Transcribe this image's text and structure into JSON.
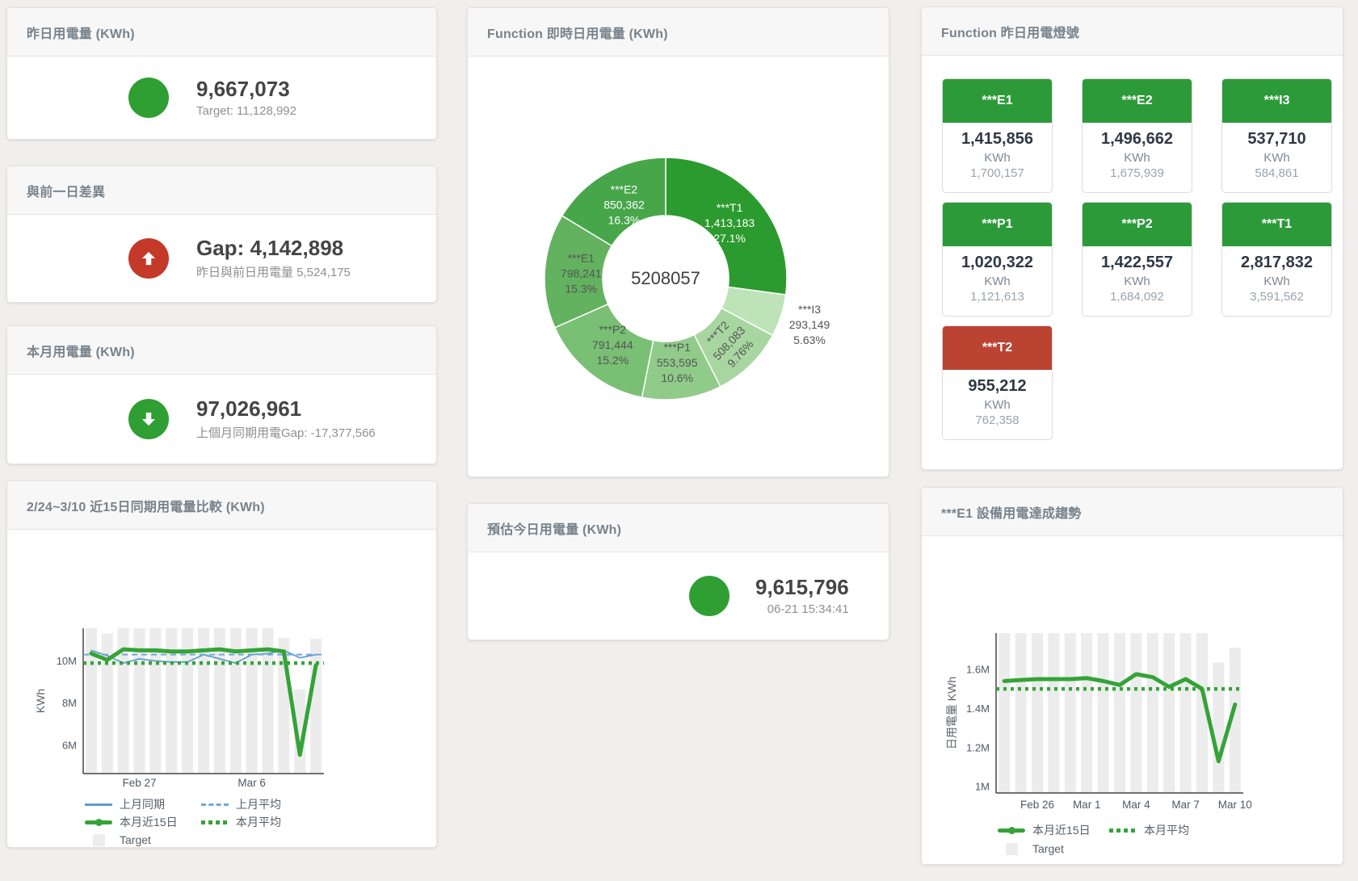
{
  "colors": {
    "green": "#2f9e33",
    "red": "#c43928",
    "tile_green": "#2d9a3a",
    "tile_red": "#bb4332",
    "line_green": "#35a338",
    "line_blue": "#5e9dd1",
    "dash_blue": "#6fa9da",
    "bar_gray": "#ececec"
  },
  "cards": {
    "yesterday": {
      "title": "昨日用電量 (KWh)",
      "value": "9,667,073",
      "sub": "Target: 11,128,992"
    },
    "gap": {
      "title": "與前一日差異",
      "value": "Gap: 4,142,898",
      "sub": "昨日與前日用電量 5,524,175"
    },
    "month": {
      "title": "本月用電量 (KWh)",
      "value": "97,026,961",
      "sub": "上個月同期用電Gap: -17,377,566"
    },
    "compare": {
      "title": "2/24~3/10 近15日同期用電量比較 (KWh)"
    },
    "donut": {
      "title": "Function 即時日用電量 (KWh)"
    },
    "today": {
      "title": "預估今日用電量 (KWh)",
      "value": "9,615,796",
      "sub": "06-21 15:34:41"
    },
    "lights": {
      "title": "Function 昨日用電燈號",
      "unit": "KWh",
      "tiles": [
        {
          "label": "***E1",
          "value": "1,415,856",
          "target": "1,700,157",
          "status": "green"
        },
        {
          "label": "***E2",
          "value": "1,496,662",
          "target": "1,675,939",
          "status": "green"
        },
        {
          "label": "***I3",
          "value": "537,710",
          "target": "584,861",
          "status": "green"
        },
        {
          "label": "***P1",
          "value": "1,020,322",
          "target": "1,121,613",
          "status": "green"
        },
        {
          "label": "***P2",
          "value": "1,422,557",
          "target": "1,684,092",
          "status": "green"
        },
        {
          "label": "***T1",
          "value": "2,817,832",
          "target": "3,591,562",
          "status": "green"
        },
        {
          "label": "***T2",
          "value": "955,212",
          "target": "762,358",
          "status": "red"
        }
      ]
    },
    "trend": {
      "title": "***E1 設備用電達成趨勢"
    }
  },
  "chart_data": [
    {
      "id": "realtime-donut",
      "type": "pie",
      "title": "Function 即時日用電量 (KWh)",
      "center_total": "5208057",
      "slices": [
        {
          "name": "***T1",
          "value": 1413183,
          "display": "1,413,183",
          "pct": "27.1%",
          "share": 27.1,
          "color": "#2c9b2f",
          "label_color": "#ffffff"
        },
        {
          "name": "***I3",
          "value": 293149,
          "display": "293,149",
          "pct": "5.63%",
          "share": 5.63,
          "color": "#bee3b8",
          "label_color": "#555555",
          "outside": true
        },
        {
          "name": "***T2",
          "value": 508083,
          "display": "508,083",
          "pct": "9.76%",
          "share": 9.76,
          "color": "#a7d6a0",
          "label_color": "#555555",
          "rotate": -47
        },
        {
          "name": "***P1",
          "value": 553595,
          "display": "553,595",
          "pct": "10.6%",
          "share": 10.6,
          "color": "#90cb89",
          "label_color": "#555555"
        },
        {
          "name": "***P2",
          "value": 791444,
          "display": "791,444",
          "pct": "15.2%",
          "share": 15.2,
          "color": "#79bf74",
          "label_color": "#555555"
        },
        {
          "name": "***E1",
          "value": 798241,
          "display": "798,241",
          "pct": "15.3%",
          "share": 15.3,
          "color": "#63b25f",
          "label_color": "#555555"
        },
        {
          "name": "***E2",
          "value": 850362,
          "display": "850,362",
          "pct": "16.3%",
          "share": 16.3,
          "color": "#48a64a",
          "label_color": "#ffffff"
        }
      ]
    },
    {
      "id": "compare",
      "type": "line",
      "title": "2/24~3/10 近15日同期用電量比較 (KWh)",
      "ylabel": "KWh",
      "ylim": [
        4660000,
        11550000
      ],
      "x": [
        "Feb 24",
        "Feb 25",
        "Feb 26",
        "Feb 27",
        "Feb 28",
        "Mar 1",
        "Mar 2",
        "Mar 3",
        "Mar 4",
        "Mar 5",
        "Mar 6",
        "Mar 7",
        "Mar 8",
        "Mar 9",
        "Mar 10"
      ],
      "xticks": [
        {
          "index": 3,
          "label": "Feb 27"
        },
        {
          "index": 10,
          "label": "Mar 6"
        }
      ],
      "yticks": [
        {
          "value": 6000000,
          "label": "6M"
        },
        {
          "value": 8000000,
          "label": "8M"
        },
        {
          "value": 10000000,
          "label": "10M"
        }
      ],
      "target_bars": [
        11550000,
        11300000,
        11550000,
        11550000,
        11550000,
        11550000,
        11550000,
        11550000,
        11550000,
        11550000,
        11550000,
        11550000,
        11100000,
        8650000,
        11050000
      ],
      "series": [
        {
          "name": "上月同期",
          "style": "line-blue",
          "values": [
            10500000,
            10250000,
            9900000,
            10100000,
            10000000,
            9950000,
            9950000,
            10300000,
            10100000,
            9900000,
            10300000,
            10350000,
            10500000,
            10150000,
            10300000
          ]
        },
        {
          "name": "上月平均",
          "style": "dash-blue",
          "const": 10300000
        },
        {
          "name": "本月平均",
          "style": "dot-green",
          "const": 9900000
        },
        {
          "name": "本月近15日",
          "style": "thick-green",
          "values": [
            10350000,
            10050000,
            10550000,
            10500000,
            10500000,
            10450000,
            10450000,
            10500000,
            10550000,
            10450000,
            10500000,
            10550000,
            10450000,
            5550000,
            9800000
          ]
        }
      ],
      "legend": [
        {
          "label": "上月同期",
          "style": "line-blue"
        },
        {
          "label": "上月平均",
          "style": "dash-blue"
        },
        {
          "label": "本月近15日",
          "style": "thick-green"
        },
        {
          "label": "本月平均",
          "style": "dot-green"
        },
        {
          "label": "Target",
          "style": "target"
        }
      ]
    },
    {
      "id": "trend",
      "type": "line",
      "title": "***E1 設備用電達成趨勢",
      "ylabel": "日用電量 KWh",
      "ylim": [
        968000,
        1785000
      ],
      "x": [
        "Feb 24",
        "Feb 25",
        "Feb 26",
        "Feb 27",
        "Feb 28",
        "Mar 1",
        "Mar 2",
        "Mar 3",
        "Mar 4",
        "Mar 5",
        "Mar 6",
        "Mar 7",
        "Mar 8",
        "Mar 9",
        "Mar 10"
      ],
      "xticks": [
        {
          "index": 2,
          "label": "Feb 26"
        },
        {
          "index": 5,
          "label": "Mar 1"
        },
        {
          "index": 8,
          "label": "Mar 4"
        },
        {
          "index": 11,
          "label": "Mar 7"
        },
        {
          "index": 14,
          "label": "Mar 10"
        }
      ],
      "yticks": [
        {
          "value": 1000000,
          "label": "1M"
        },
        {
          "value": 1200000,
          "label": "1.2M"
        },
        {
          "value": 1400000,
          "label": "1.4M"
        },
        {
          "value": 1600000,
          "label": "1.6M"
        }
      ],
      "target_bars": [
        1790000,
        1790000,
        1790000,
        1790000,
        1790000,
        1790000,
        1790000,
        1790000,
        1790000,
        1790000,
        1790000,
        1790000,
        1790000,
        1635000,
        1710000
      ],
      "series": [
        {
          "name": "本月平均",
          "style": "dot-green",
          "const": 1500000
        },
        {
          "name": "本月近15日",
          "style": "thick-green",
          "values": [
            1540000,
            1545000,
            1550000,
            1550000,
            1550000,
            1555000,
            1540000,
            1520000,
            1575000,
            1560000,
            1510000,
            1550000,
            1500000,
            1130000,
            1420000
          ]
        }
      ],
      "legend": [
        {
          "label": "本月近15日",
          "style": "thick-green"
        },
        {
          "label": "本月平均",
          "style": "dot-green"
        },
        {
          "label": "Target",
          "style": "target"
        }
      ]
    }
  ]
}
